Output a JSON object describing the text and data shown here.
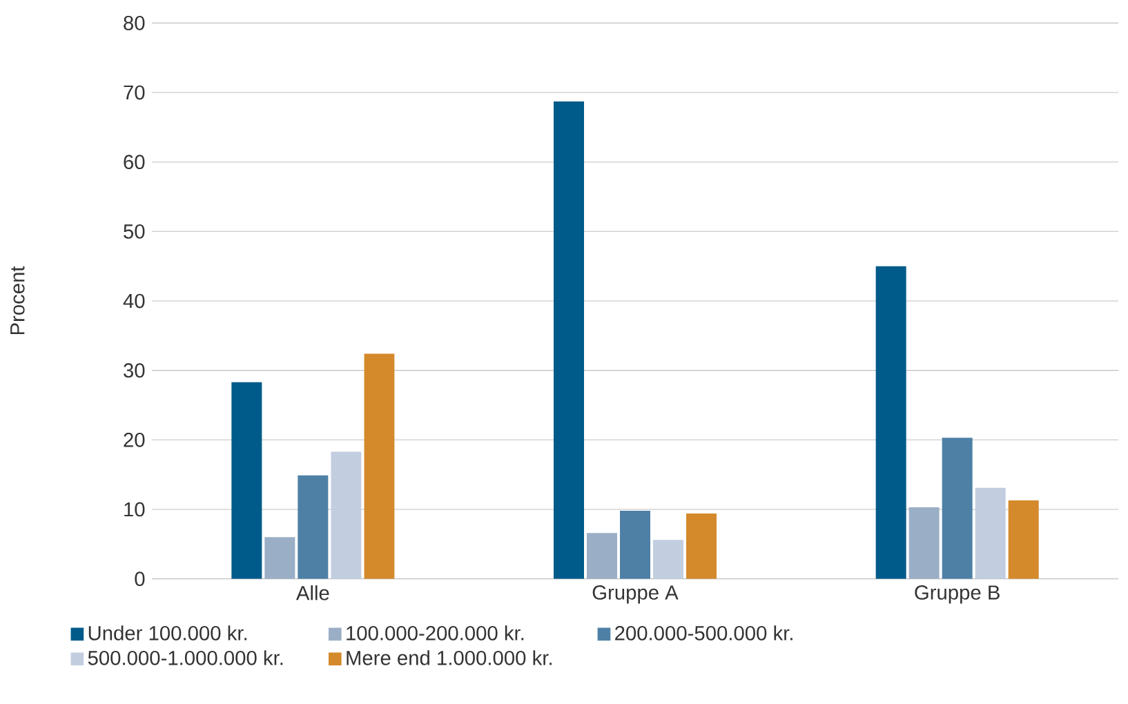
{
  "chart_data": {
    "type": "bar",
    "ylabel": "Procent",
    "categories": [
      "Alle",
      "Gruppe A",
      "Gruppe B"
    ],
    "series": [
      {
        "name": "Under 100.000 kr.",
        "color": "#005b8a",
        "values": [
          28.3,
          68.7,
          45.0
        ]
      },
      {
        "name": "100.000-200.000 kr.",
        "color": "#9aafc6",
        "values": [
          6.0,
          6.6,
          10.3
        ]
      },
      {
        "name": "200.000-500.000 kr.",
        "color": "#4e80a6",
        "values": [
          14.9,
          9.8,
          20.3
        ]
      },
      {
        "name": "500.000-1.000.000 kr.",
        "color": "#c2cee0",
        "values": [
          18.3,
          5.6,
          13.1
        ]
      },
      {
        "name": "Mere end 1.000.000 kr.",
        "color": "#d4892a",
        "values": [
          32.4,
          9.4,
          11.3
        ]
      }
    ],
    "ylim": [
      0,
      80
    ],
    "yticks": [
      0,
      10,
      20,
      30,
      40,
      50,
      60,
      70,
      80
    ],
    "grid": "y",
    "legend": "bottom"
  }
}
